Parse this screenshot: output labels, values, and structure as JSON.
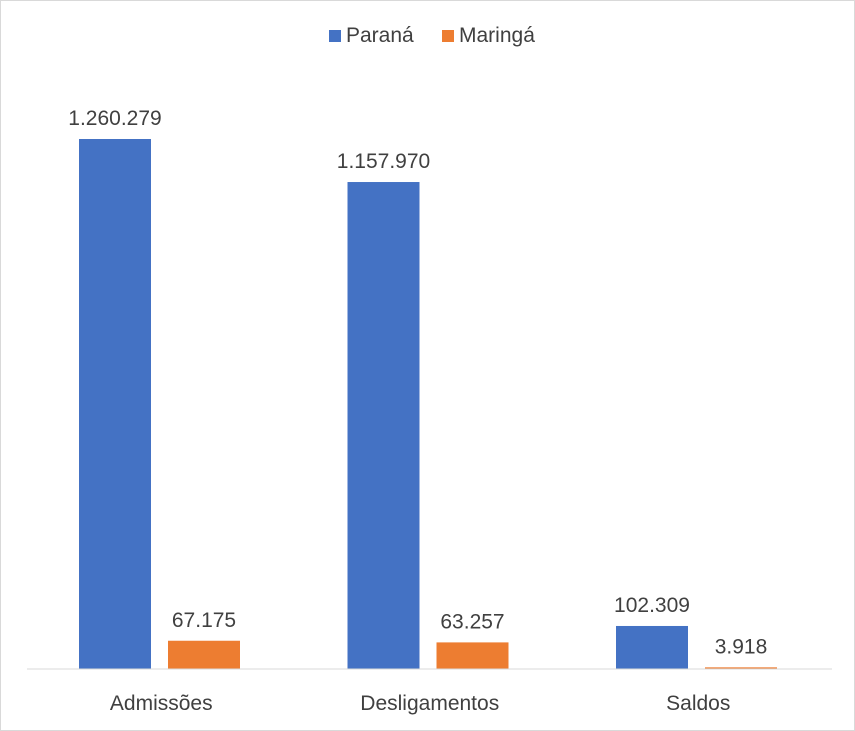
{
  "chart_data": {
    "type": "bar",
    "title": "",
    "xlabel": "",
    "ylabel": "",
    "categories": [
      "Admissões",
      "Desligamentos",
      "Saldos"
    ],
    "series": [
      {
        "name": "Paraná",
        "color": "#4472C4",
        "values": [
          1260279,
          1157970,
          102309
        ],
        "labels": [
          "1.260.279",
          "1.157.970",
          "102.309"
        ]
      },
      {
        "name": "Maringá",
        "color": "#ED7D31",
        "values": [
          67175,
          63257,
          3918
        ],
        "labels": [
          "67.175",
          "63.257",
          "3.918"
        ]
      }
    ],
    "ylim": [
      0,
      1260279
    ],
    "grid": false,
    "legend": "top-center",
    "axis_color": "#d9d9d9"
  }
}
